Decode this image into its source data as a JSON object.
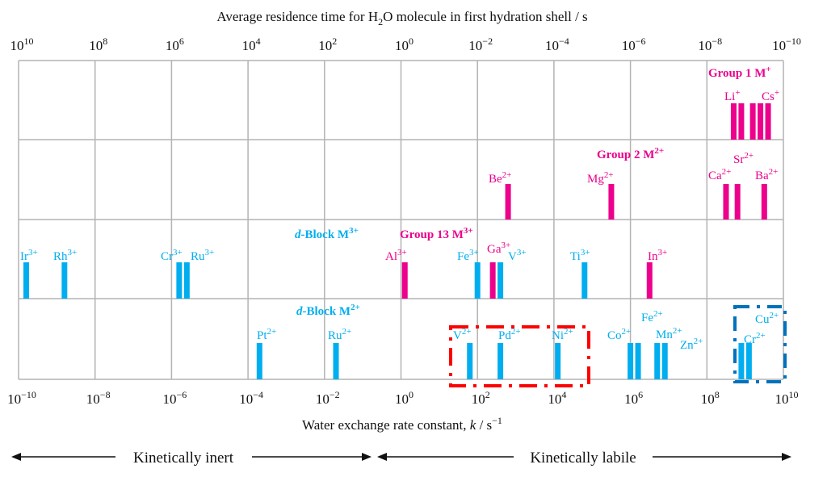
{
  "chart_data": {
    "type": "bar",
    "title": "Average residence time for H2O molecule in first hydration shell / s",
    "title_parts": {
      "pre": "Average residence time for H",
      "sub": "2",
      "post": "O molecule in first hydration shell / s"
    },
    "xlabel": "Water exchange rate constant, k / s⁻¹",
    "xlabel_parts": {
      "pre": "Water exchange rate constant, ",
      "italic": "k",
      "post": " / s",
      "sup": "−1"
    },
    "x_scale": "log",
    "xlim_log10": [
      -10,
      10
    ],
    "bottom_ticks": [
      {
        "base": "10",
        "exp": "−10"
      },
      {
        "base": "10",
        "exp": "−8"
      },
      {
        "base": "10",
        "exp": "−6"
      },
      {
        "base": "10",
        "exp": "−4"
      },
      {
        "base": "10",
        "exp": "−2"
      },
      {
        "base": "10",
        "exp": "0"
      },
      {
        "base": "10",
        "exp": "2"
      },
      {
        "base": "10",
        "exp": "4"
      },
      {
        "base": "10",
        "exp": "6"
      },
      {
        "base": "10",
        "exp": "8"
      },
      {
        "base": "10",
        "exp": "10"
      }
    ],
    "top_ticks": [
      {
        "base": "10",
        "exp": "10"
      },
      {
        "base": "10",
        "exp": "8"
      },
      {
        "base": "10",
        "exp": "6"
      },
      {
        "base": "10",
        "exp": "4"
      },
      {
        "base": "10",
        "exp": "2"
      },
      {
        "base": "10",
        "exp": "0"
      },
      {
        "base": "10",
        "exp": "−2"
      },
      {
        "base": "10",
        "exp": "−4"
      },
      {
        "base": "10",
        "exp": "−6"
      },
      {
        "base": "10",
        "exp": "−8"
      },
      {
        "base": "10",
        "exp": "−10"
      }
    ],
    "grid": true,
    "colors": {
      "s_block": "#ec008c",
      "d_block": "#00aeef",
      "grid": "#b3b3b3",
      "red_box": "#ff0000",
      "blue_box": "#0072bc"
    },
    "series": [
      {
        "name": "Group 1 M",
        "name_sup": "+",
        "row": 0,
        "color": "s_block",
        "points": [
          {
            "ion": "Li",
            "charge": "+",
            "log_k": 8.7
          },
          {
            "ion": null,
            "charge": null,
            "log_k": 8.9
          },
          {
            "ion": null,
            "charge": null,
            "log_k": 9.2
          },
          {
            "ion": null,
            "charge": null,
            "log_k": 9.4
          },
          {
            "ion": "Cs",
            "charge": "+",
            "log_k": 9.6
          }
        ]
      },
      {
        "name": "Group 2 M",
        "name_sup": "2+",
        "row": 1,
        "color": "s_block",
        "points": [
          {
            "ion": "Be",
            "charge": "2+",
            "log_k": 2.8
          },
          {
            "ion": "Mg",
            "charge": "2+",
            "log_k": 5.5
          },
          {
            "ion": "Ca",
            "charge": "2+",
            "log_k": 8.5
          },
          {
            "ion": "Sr",
            "charge": "2+",
            "log_k": 8.8
          },
          {
            "ion": "Ba",
            "charge": "2+",
            "log_k": 9.5
          }
        ]
      },
      {
        "name": "Group 13 M",
        "name_sup": "3+",
        "row": 2,
        "color": "s_block",
        "points": [
          {
            "ion": "Al",
            "charge": "3+",
            "log_k": 0.1
          },
          {
            "ion": "Ga",
            "charge": "3+",
            "log_k": 2.4
          },
          {
            "ion": "In",
            "charge": "3+",
            "log_k": 6.5
          }
        ]
      },
      {
        "name": "-Block M",
        "name_italic": "d",
        "name_sup": "3+",
        "row": 2,
        "color": "d_block",
        "points": [
          {
            "ion": "Ir",
            "charge": "3+",
            "log_k": -9.8
          },
          {
            "ion": "Rh",
            "charge": "3+",
            "log_k": -8.8
          },
          {
            "ion": "Cr",
            "charge": "3+",
            "log_k": -5.8
          },
          {
            "ion": "Ru",
            "charge": "3+",
            "log_k": -5.6
          },
          {
            "ion": "Fe",
            "charge": "3+",
            "log_k": 2.0
          },
          {
            "ion": "V",
            "charge": "3+",
            "log_k": 2.6
          },
          {
            "ion": "Ti",
            "charge": "3+",
            "log_k": 4.8
          }
        ]
      },
      {
        "name": "-Block M",
        "name_italic": "d",
        "name_sup": "2+",
        "row": 3,
        "color": "d_block",
        "points": [
          {
            "ion": "Pt",
            "charge": "2+",
            "log_k": -3.7
          },
          {
            "ion": "Ru",
            "charge": "2+",
            "log_k": -1.7
          },
          {
            "ion": "V",
            "charge": "2+",
            "log_k": 1.8
          },
          {
            "ion": "Pd",
            "charge": "2+",
            "log_k": 2.6
          },
          {
            "ion": "Ni",
            "charge": "2+",
            "log_k": 4.1
          },
          {
            "ion": "Co",
            "charge": "2+",
            "log_k": 6.0
          },
          {
            "ion": "Fe",
            "charge": "2+",
            "log_k": 6.2
          },
          {
            "ion": "Mn",
            "charge": "2+",
            "log_k": 6.7
          },
          {
            "ion": "Zn",
            "charge": "2+",
            "log_k": 6.9
          },
          {
            "ion": "Cr",
            "charge": "2+",
            "log_k": 8.9
          },
          {
            "ion": "Cu",
            "charge": "2+",
            "log_k": 9.1
          }
        ]
      }
    ]
  },
  "footer": {
    "inert_label": "Kinetically inert",
    "labile_label": "Kinetically labile"
  }
}
